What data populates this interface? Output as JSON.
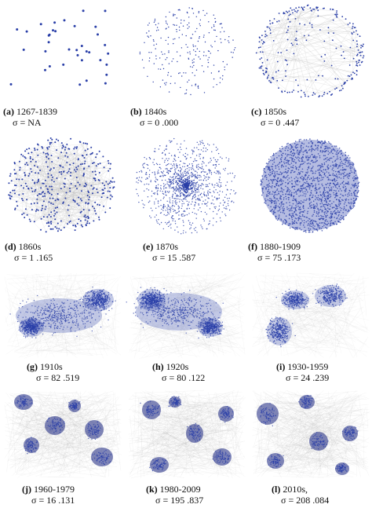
{
  "panels": [
    {
      "label": "(a)",
      "period": "1267-1839",
      "sigma_text": "σ = NA",
      "density": 0.06,
      "style": "grid-sparse"
    },
    {
      "label": "(b)",
      "period": "1840s",
      "sigma_text": "σ = 0 .000",
      "density": 0.25,
      "style": "ring-dots"
    },
    {
      "label": "(c)",
      "period": "1850s",
      "sigma_text": "σ = 0 .447",
      "density": 0.45,
      "style": "ring-edge"
    },
    {
      "label": "(d)",
      "period": "1860s",
      "sigma_text": "σ = 1 .165",
      "density": 0.6,
      "style": "blob-gray"
    },
    {
      "label": "(e)",
      "period": "1870s",
      "sigma_text": "σ = 15 .587",
      "density": 0.7,
      "style": "radial"
    },
    {
      "label": "(f)",
      "period": "1880-1909",
      "sigma_text": "σ = 75 .173",
      "density": 0.9,
      "style": "dense-disc"
    },
    {
      "label": "(g)",
      "period": "1910s",
      "sigma_text": "σ = 82 .519",
      "density": 0.9,
      "style": "cloud"
    },
    {
      "label": "(h)",
      "period": "1920s",
      "sigma_text": "σ = 80 .122",
      "density": 0.9,
      "style": "cloud"
    },
    {
      "label": "(i)",
      "period": "1930-1959",
      "sigma_text": "σ = 24 .239",
      "density": 0.8,
      "style": "cluster"
    },
    {
      "label": "(j)",
      "period": "1960-1979",
      "sigma_text": "σ = 16 .131",
      "density": 0.8,
      "style": "cluster-map"
    },
    {
      "label": "(k)",
      "period": "1980-2009",
      "sigma_text": "σ = 195 .837",
      "density": 0.8,
      "style": "cluster-map"
    },
    {
      "label": "(l)",
      "period": "2010s,",
      "sigma_text": "σ = 208 .084",
      "density": 0.8,
      "style": "cluster-map"
    }
  ],
  "colors": {
    "node": "#2a3fa8",
    "node_dark": "#1a2580",
    "edge": "#b8b8b8",
    "text": "#111111"
  }
}
